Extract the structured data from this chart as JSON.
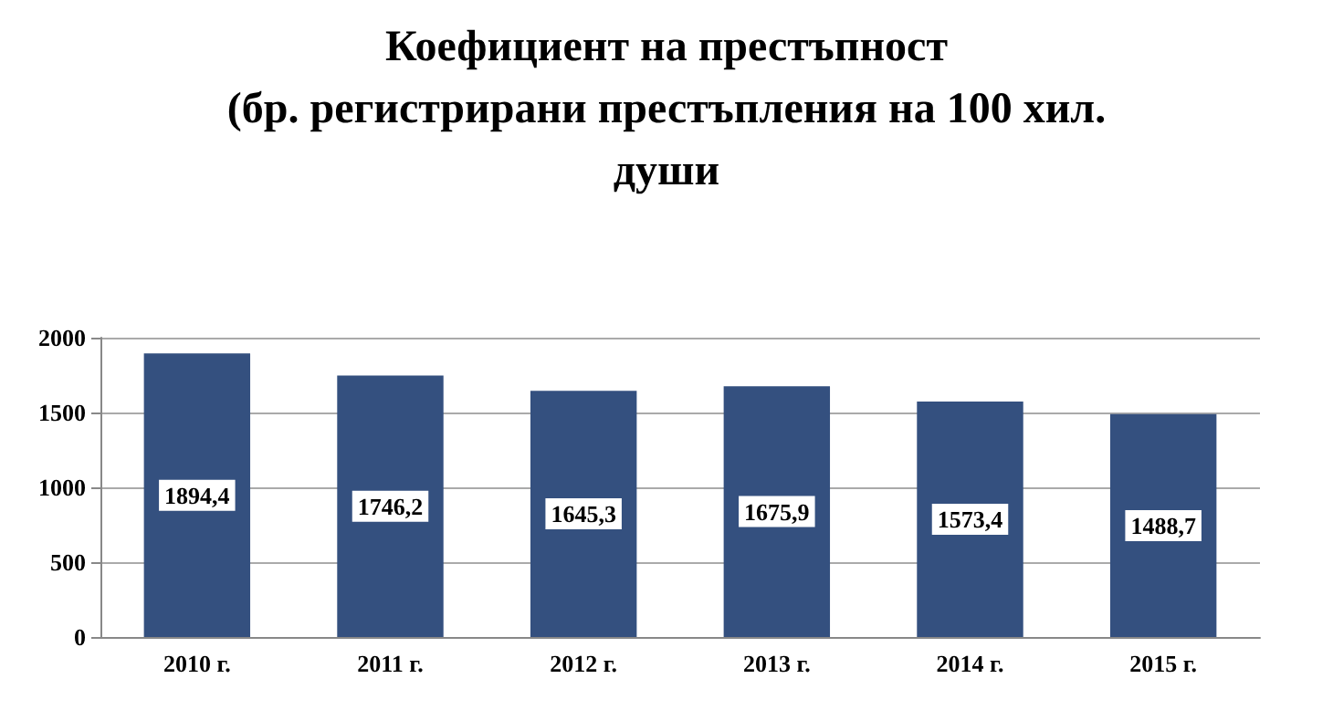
{
  "chart_data": {
    "type": "bar",
    "title": "Коефициент на престъпност\n(бр. регистрирани престъпления на 100 хил.\nдуши",
    "categories": [
      "2010 г.",
      "2011 г.",
      "2012 г.",
      "2013 г.",
      "2014 г.",
      "2015 г."
    ],
    "values": [
      1894.4,
      1746.2,
      1645.3,
      1675.9,
      1573.4,
      1488.7
    ],
    "value_labels": [
      "1894,4",
      "1746,2",
      "1645,3",
      "1675,9",
      "1573,4",
      "1488,7"
    ],
    "color": "#34507f",
    "ylim": [
      0,
      2000
    ],
    "yticks": [
      0,
      500,
      1000,
      1500,
      2000
    ],
    "grid": "y"
  }
}
